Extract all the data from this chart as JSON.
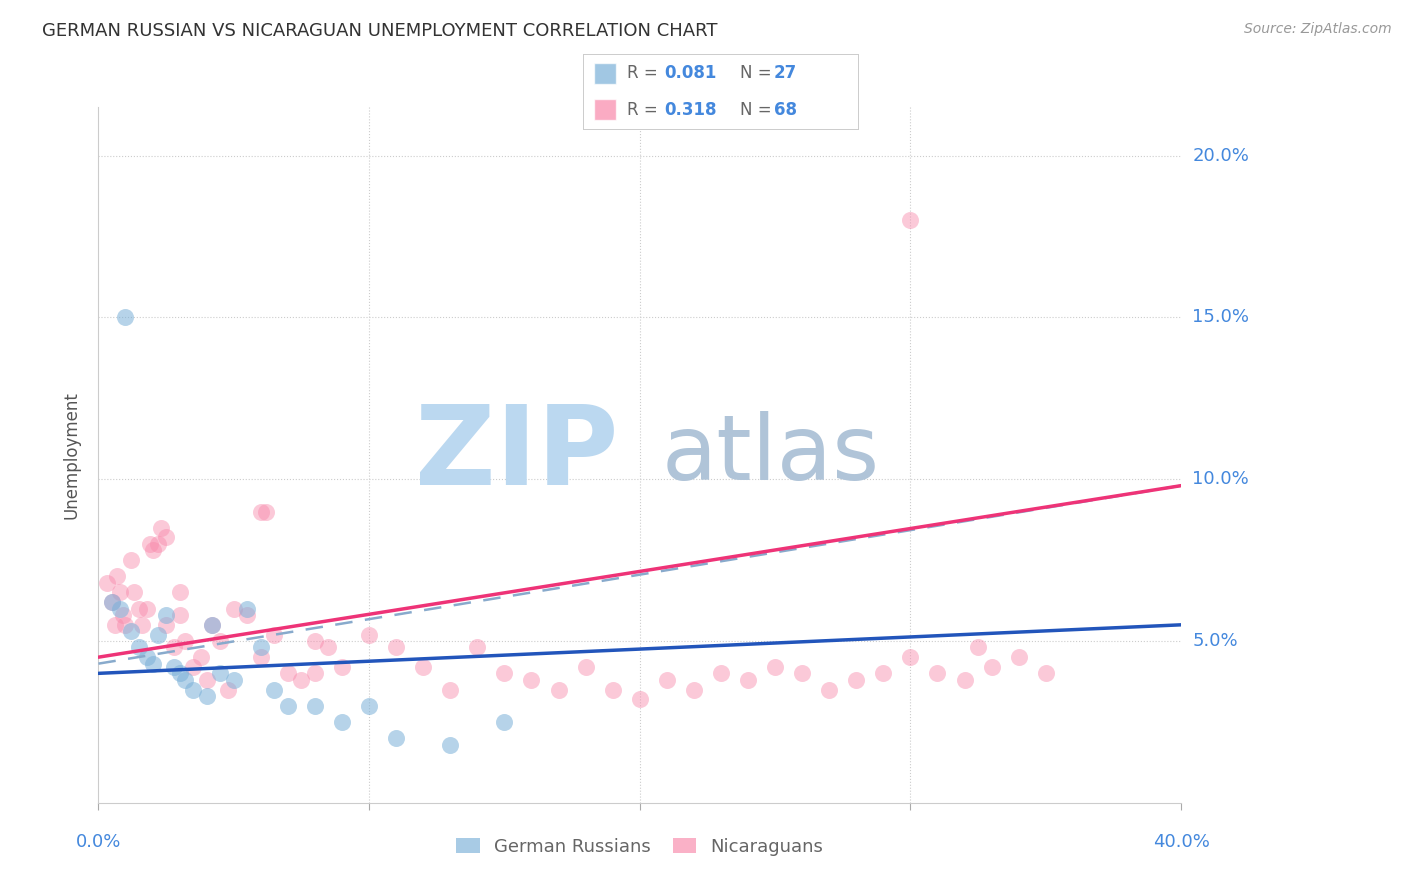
{
  "title": "GERMAN RUSSIAN VS NICARAGUAN UNEMPLOYMENT CORRELATION CHART",
  "source": "Source: ZipAtlas.com",
  "ylabel": "Unemployment",
  "yticks": [
    0.0,
    0.05,
    0.1,
    0.15,
    0.2
  ],
  "ytick_labels": [
    "",
    "5.0%",
    "10.0%",
    "15.0%",
    "20.0%"
  ],
  "xlim": [
    0.0,
    0.4
  ],
  "ylim": [
    0.0,
    0.215
  ],
  "legend_label1": "German Russians",
  "legend_label2": "Nicaraguans",
  "blue_color": "#7ab0d8",
  "pink_color": "#f888aa",
  "blue_line_color": "#2255bb",
  "pink_line_color": "#ee3377",
  "dash_line_color": "#88aacc",
  "tick_label_color": "#4488dd",
  "title_color": "#333333",
  "source_color": "#999999",
  "grid_color": "#cccccc",
  "watermark_zip_color": "#bbd8f0",
  "watermark_atlas_color": "#b0c4d8",
  "blue_scatter_x": [
    0.005,
    0.008,
    0.01,
    0.012,
    0.015,
    0.018,
    0.02,
    0.022,
    0.025,
    0.028,
    0.03,
    0.032,
    0.035,
    0.04,
    0.042,
    0.045,
    0.05,
    0.055,
    0.06,
    0.065,
    0.07,
    0.08,
    0.09,
    0.1,
    0.11,
    0.13,
    0.15
  ],
  "blue_scatter_y": [
    0.062,
    0.06,
    0.15,
    0.053,
    0.048,
    0.045,
    0.043,
    0.052,
    0.058,
    0.042,
    0.04,
    0.038,
    0.035,
    0.033,
    0.055,
    0.04,
    0.038,
    0.06,
    0.048,
    0.035,
    0.03,
    0.03,
    0.025,
    0.03,
    0.02,
    0.018,
    0.025
  ],
  "pink_scatter_x": [
    0.003,
    0.005,
    0.006,
    0.007,
    0.008,
    0.009,
    0.01,
    0.012,
    0.013,
    0.015,
    0.016,
    0.018,
    0.019,
    0.02,
    0.022,
    0.023,
    0.025,
    0.028,
    0.03,
    0.032,
    0.035,
    0.038,
    0.04,
    0.042,
    0.045,
    0.048,
    0.05,
    0.055,
    0.06,
    0.062,
    0.065,
    0.07,
    0.075,
    0.08,
    0.085,
    0.09,
    0.1,
    0.11,
    0.12,
    0.13,
    0.14,
    0.15,
    0.16,
    0.17,
    0.18,
    0.19,
    0.2,
    0.21,
    0.22,
    0.23,
    0.24,
    0.25,
    0.26,
    0.27,
    0.28,
    0.29,
    0.3,
    0.31,
    0.32,
    0.33,
    0.34,
    0.35,
    0.025,
    0.03,
    0.06,
    0.08,
    0.3,
    0.325
  ],
  "pink_scatter_y": [
    0.068,
    0.062,
    0.055,
    0.07,
    0.065,
    0.058,
    0.055,
    0.075,
    0.065,
    0.06,
    0.055,
    0.06,
    0.08,
    0.078,
    0.08,
    0.085,
    0.055,
    0.048,
    0.065,
    0.05,
    0.042,
    0.045,
    0.038,
    0.055,
    0.05,
    0.035,
    0.06,
    0.058,
    0.045,
    0.09,
    0.052,
    0.04,
    0.038,
    0.04,
    0.048,
    0.042,
    0.052,
    0.048,
    0.042,
    0.035,
    0.048,
    0.04,
    0.038,
    0.035,
    0.042,
    0.035,
    0.032,
    0.038,
    0.035,
    0.04,
    0.038,
    0.042,
    0.04,
    0.035,
    0.038,
    0.04,
    0.045,
    0.04,
    0.038,
    0.042,
    0.045,
    0.04,
    0.082,
    0.058,
    0.09,
    0.05,
    0.18,
    0.048
  ],
  "blue_line": [
    [
      0.0,
      0.4
    ],
    [
      0.04,
      0.055
    ]
  ],
  "pink_line": [
    [
      0.0,
      0.4
    ],
    [
      0.045,
      0.098
    ]
  ],
  "dashed_line": [
    [
      0.0,
      0.4
    ],
    [
      0.043,
      0.098
    ]
  ]
}
